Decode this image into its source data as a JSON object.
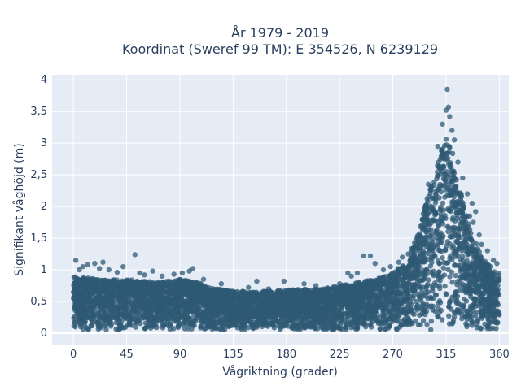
{
  "chart_data": {
    "type": "scatter",
    "title_line1": "År 1979 - 2019",
    "title_line2": "Koordinat (Sweref 99 TM): E 354526, N 6239129",
    "xlabel": "Vågriktning (grader)",
    "ylabel": "Signifikant våghöjd (m)",
    "xlim": [
      -18,
      368
    ],
    "ylim": [
      -0.18,
      4.08
    ],
    "x_ticks": [
      0,
      45,
      90,
      135,
      180,
      225,
      270,
      315,
      360
    ],
    "x_tick_labels": [
      "0",
      "45",
      "90",
      "135",
      "180",
      "225",
      "270",
      "315",
      "360"
    ],
    "y_ticks": [
      0,
      0.5,
      1,
      1.5,
      2,
      2.5,
      3,
      3.5,
      4
    ],
    "y_tick_labels": [
      "0",
      "0,5",
      "1",
      "1,5",
      "2",
      "2,5",
      "3",
      "3,5",
      "4"
    ],
    "grid": true,
    "marker_color": "#2f5a74",
    "plot_bg": "#e5ecf6",
    "upper_envelope": [
      {
        "x": 0,
        "y": 0.9
      },
      {
        "x": 20,
        "y": 0.85
      },
      {
        "x": 45,
        "y": 0.85
      },
      {
        "x": 70,
        "y": 0.8
      },
      {
        "x": 90,
        "y": 0.85
      },
      {
        "x": 105,
        "y": 0.8
      },
      {
        "x": 120,
        "y": 0.7
      },
      {
        "x": 150,
        "y": 0.65
      },
      {
        "x": 180,
        "y": 0.68
      },
      {
        "x": 210,
        "y": 0.7
      },
      {
        "x": 240,
        "y": 0.8
      },
      {
        "x": 265,
        "y": 0.9
      },
      {
        "x": 280,
        "y": 1.1
      },
      {
        "x": 290,
        "y": 1.5
      },
      {
        "x": 300,
        "y": 2.2
      },
      {
        "x": 310,
        "y": 2.8
      },
      {
        "x": 315,
        "y": 3.2
      },
      {
        "x": 320,
        "y": 2.9
      },
      {
        "x": 325,
        "y": 2.4
      },
      {
        "x": 335,
        "y": 1.7
      },
      {
        "x": 345,
        "y": 1.2
      },
      {
        "x": 355,
        "y": 1.0
      },
      {
        "x": 360,
        "y": 0.95
      }
    ],
    "lower_bound": 0.05,
    "outliers": [
      {
        "x": 316,
        "y": 3.85
      },
      {
        "x": 317,
        "y": 3.57
      },
      {
        "x": 315,
        "y": 3.52
      },
      {
        "x": 318,
        "y": 3.42
      },
      {
        "x": 312,
        "y": 3.3
      },
      {
        "x": 320,
        "y": 3.2
      },
      {
        "x": 322,
        "y": 3.05
      },
      {
        "x": 308,
        "y": 2.95
      },
      {
        "x": 325,
        "y": 2.7
      },
      {
        "x": 300,
        "y": 2.35
      },
      {
        "x": 329,
        "y": 2.45
      },
      {
        "x": 333,
        "y": 2.2
      },
      {
        "x": 337,
        "y": 2.05
      },
      {
        "x": 340,
        "y": 1.92
      },
      {
        "x": 338,
        "y": 1.75
      },
      {
        "x": 335,
        "y": 1.85
      },
      {
        "x": 330,
        "y": 1.98
      },
      {
        "x": 345,
        "y": 1.4
      },
      {
        "x": 343,
        "y": 1.55
      },
      {
        "x": 350,
        "y": 1.3
      },
      {
        "x": 355,
        "y": 1.15
      },
      {
        "x": 358,
        "y": 1.1
      },
      {
        "x": 295,
        "y": 1.5
      },
      {
        "x": 298,
        "y": 1.6
      },
      {
        "x": 292,
        "y": 1.45
      },
      {
        "x": 288,
        "y": 1.35
      },
      {
        "x": 283,
        "y": 1.25
      },
      {
        "x": 278,
        "y": 1.2
      },
      {
        "x": 275,
        "y": 1.12
      },
      {
        "x": 268,
        "y": 1.05
      },
      {
        "x": 262,
        "y": 1.0
      },
      {
        "x": 255,
        "y": 1.1
      },
      {
        "x": 251,
        "y": 1.22
      },
      {
        "x": 245,
        "y": 1.22
      },
      {
        "x": 240,
        "y": 0.95
      },
      {
        "x": 235,
        "y": 0.9
      },
      {
        "x": 2,
        "y": 1.15
      },
      {
        "x": 5,
        "y": 1.0
      },
      {
        "x": 8,
        "y": 1.05
      },
      {
        "x": 12,
        "y": 1.08
      },
      {
        "x": 18,
        "y": 1.1
      },
      {
        "x": 25,
        "y": 1.12
      },
      {
        "x": 22,
        "y": 1.02
      },
      {
        "x": 30,
        "y": 1.0
      },
      {
        "x": 37,
        "y": 0.96
      },
      {
        "x": 42,
        "y": 1.05
      },
      {
        "x": 52,
        "y": 1.24
      },
      {
        "x": 56,
        "y": 0.95
      },
      {
        "x": 60,
        "y": 0.92
      },
      {
        "x": 67,
        "y": 0.98
      },
      {
        "x": 75,
        "y": 0.9
      },
      {
        "x": 85,
        "y": 0.93
      },
      {
        "x": 92,
        "y": 0.95
      },
      {
        "x": 98,
        "y": 0.98
      },
      {
        "x": 101,
        "y": 1.02
      },
      {
        "x": 110,
        "y": 0.85
      },
      {
        "x": 125,
        "y": 0.78
      },
      {
        "x": 148,
        "y": 0.72
      },
      {
        "x": 155,
        "y": 0.82
      },
      {
        "x": 165,
        "y": 0.7
      },
      {
        "x": 178,
        "y": 0.82
      },
      {
        "x": 195,
        "y": 0.78
      },
      {
        "x": 205,
        "y": 0.75
      },
      {
        "x": 215,
        "y": 0.7
      },
      {
        "x": 225,
        "y": 0.78
      },
      {
        "x": 232,
        "y": 0.95
      }
    ]
  }
}
